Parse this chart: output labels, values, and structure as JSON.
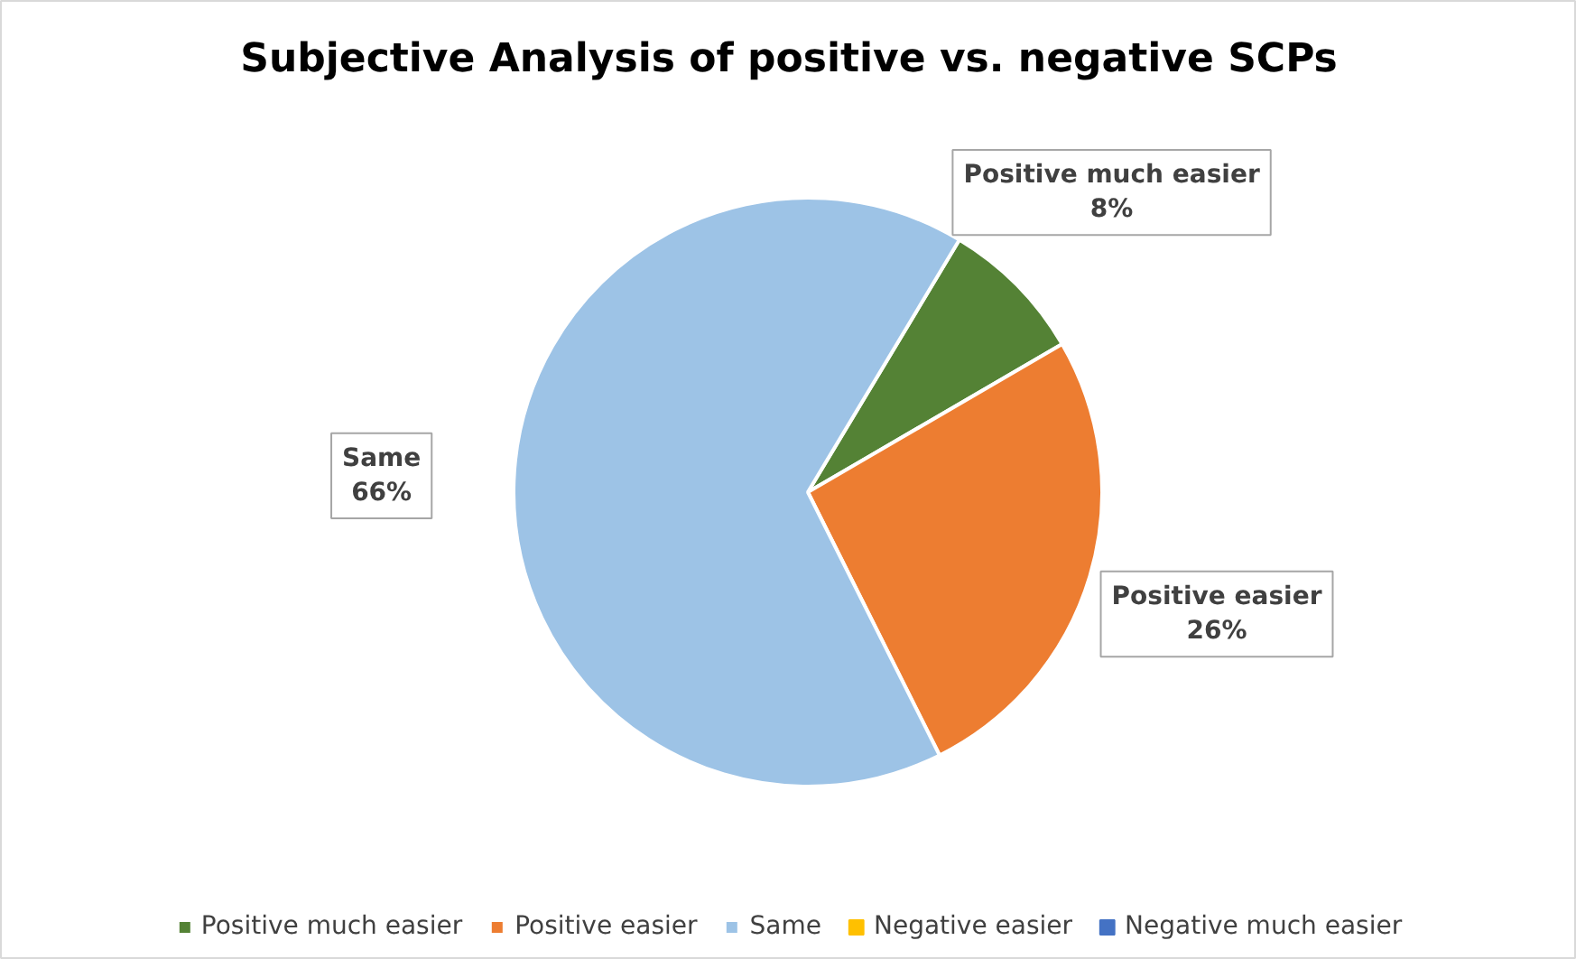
{
  "chart_data": {
    "type": "pie",
    "title": "Subjective Analysis of positive vs. negative SCPs",
    "categories": [
      "Positive much easier",
      "Positive easier",
      "Same",
      "Negative easier",
      "Negative much easier"
    ],
    "values": [
      8,
      26,
      66,
      0,
      0
    ],
    "colors": [
      "#548235",
      "#ed7d31",
      "#9dc3e6",
      "#ffc000",
      "#4472c4"
    ],
    "value_labels": [
      "8%",
      "26%",
      "66%",
      null,
      null
    ],
    "legend": "bottom"
  }
}
